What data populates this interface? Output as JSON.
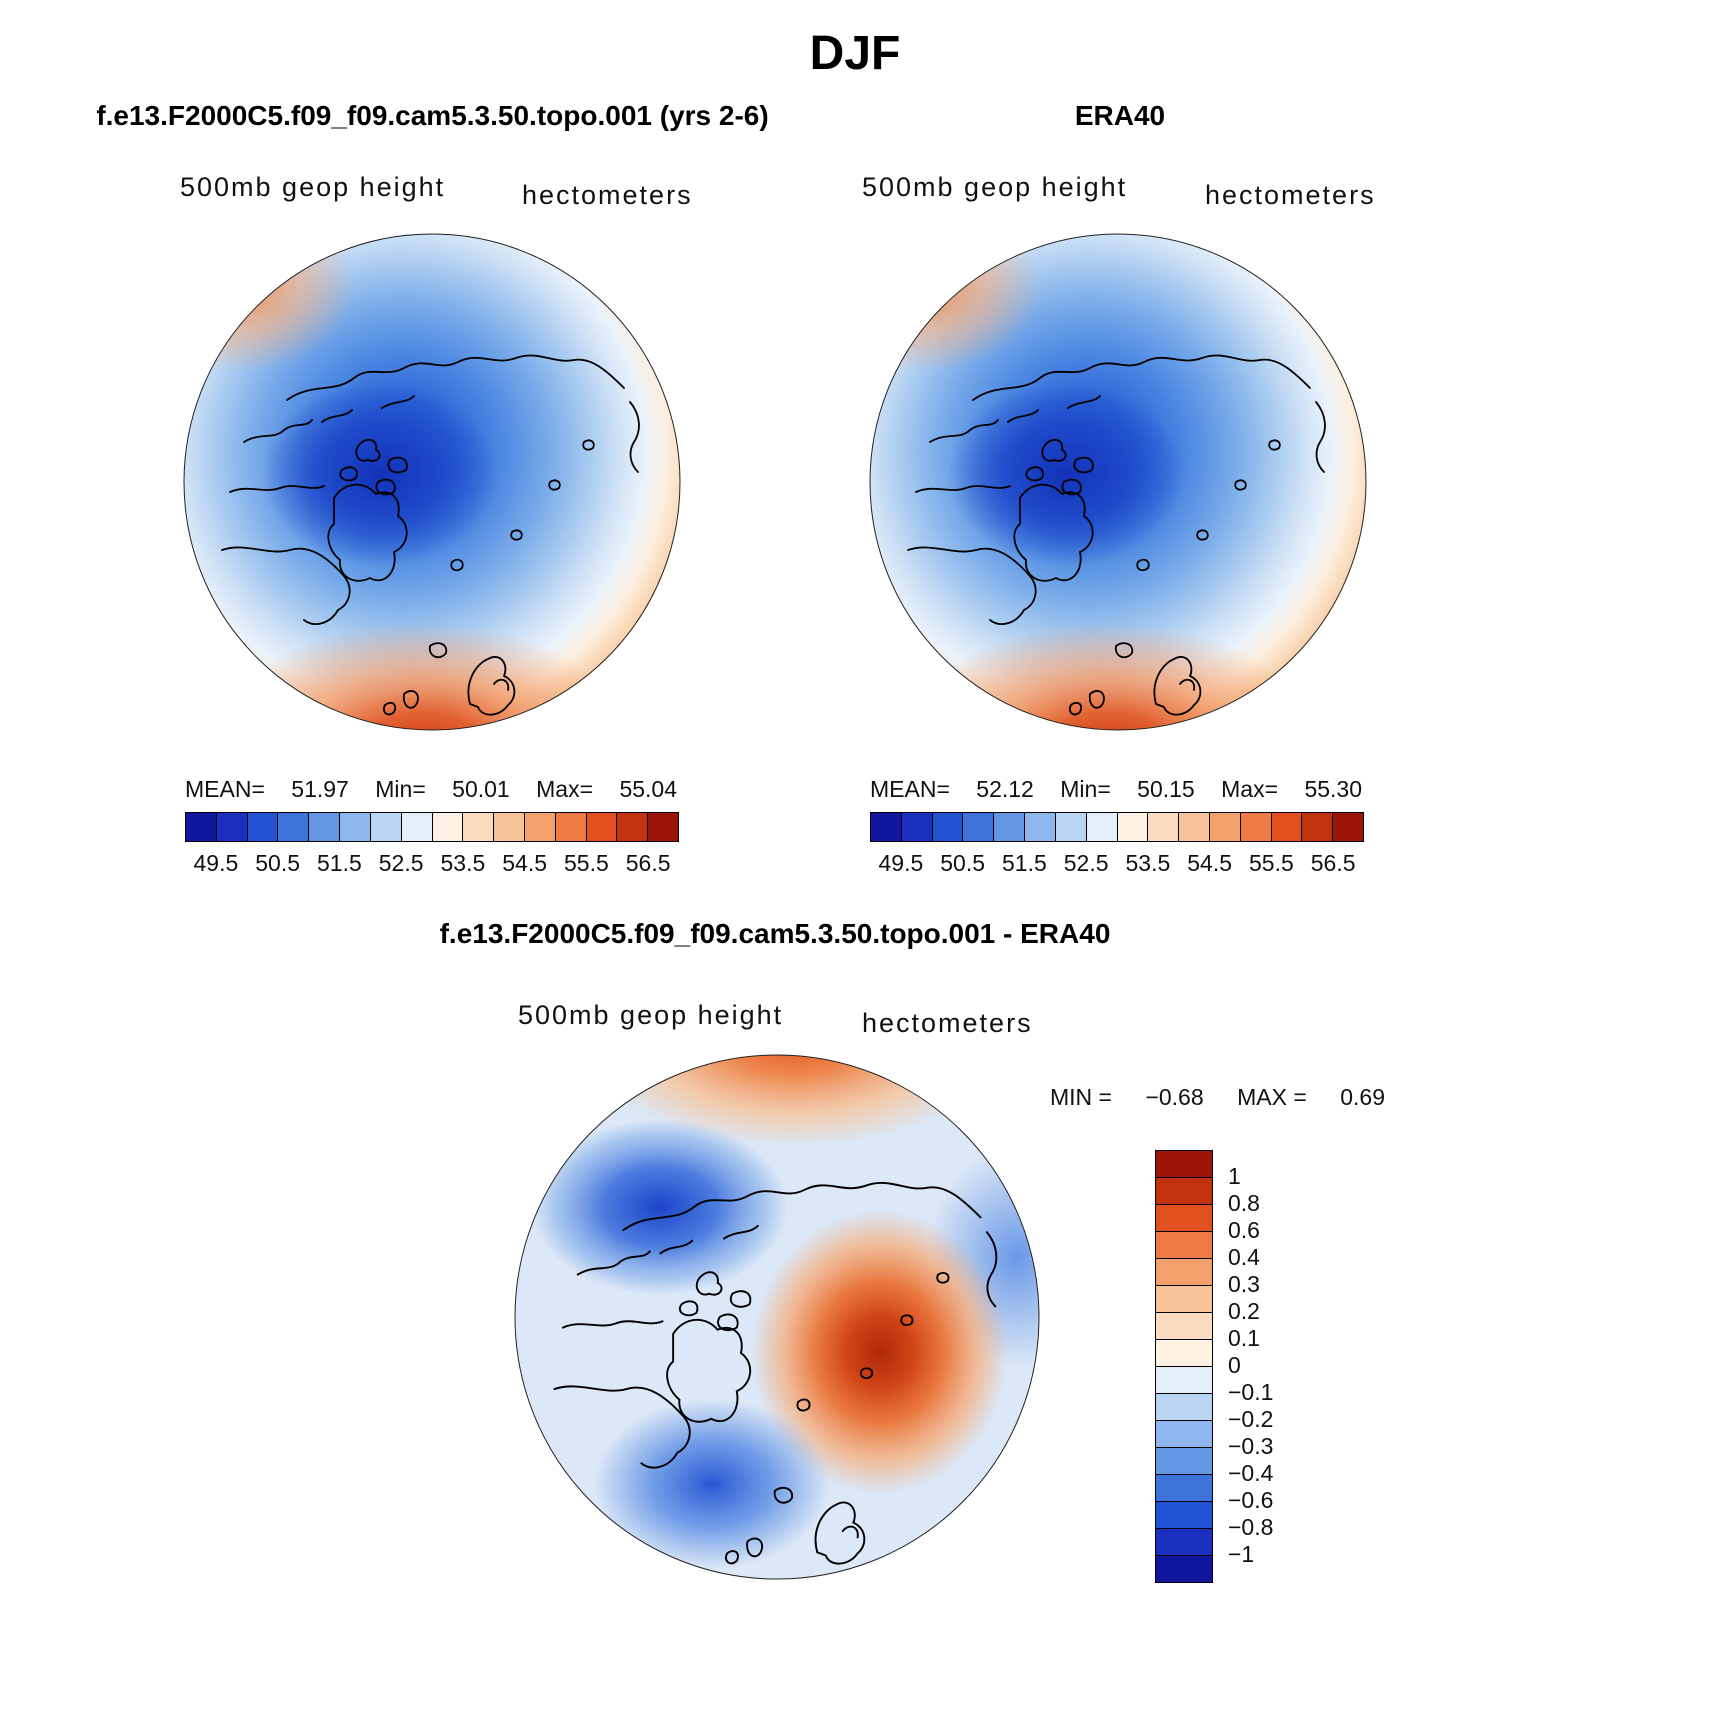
{
  "page": {
    "title": "DJF"
  },
  "model_panel": {
    "title": "f.e13.F2000C5.f09_f09.cam5.3.50.topo.001 (yrs 2-6)",
    "field_label": "500mb geop height",
    "units_label": "hectometers",
    "stats": {
      "mean_label": "MEAN=",
      "mean_value": "51.97",
      "min_label": "Min=",
      "min_value": "50.01",
      "max_label": "Max=",
      "max_value": "55.04"
    }
  },
  "obs_panel": {
    "title": "ERA40",
    "field_label": "500mb geop height",
    "units_label": "hectometers",
    "stats": {
      "mean_label": "MEAN=",
      "mean_value": "52.12",
      "min_label": "Min=",
      "min_value": "50.15",
      "max_label": "Max=",
      "max_value": "55.30"
    }
  },
  "diff_panel": {
    "title": "f.e13.F2000C5.f09_f09.cam5.3.50.topo.001 - ERA40",
    "field_label": "500mb geop height",
    "units_label": "hectometers",
    "stats": {
      "min_label": "MIN =",
      "min_value": "−0.68",
      "max_label": "MAX =",
      "max_value": "0.69"
    }
  },
  "height_colorbar": {
    "colors": [
      "#10169e",
      "#1b2fc0",
      "#2253d2",
      "#3d74dc",
      "#6496e6",
      "#8fb6ee",
      "#bad4f4",
      "#e2eefa",
      "#fdf1e4",
      "#fbdcc0",
      "#f8c29a",
      "#f4a06c",
      "#ef7a44",
      "#e2501f",
      "#c3320f",
      "#9c1508"
    ],
    "tick_labels": [
      "49.5",
      "50.5",
      "51.5",
      "52.5",
      "53.5",
      "54.5",
      "55.5",
      "56.5"
    ]
  },
  "diff_colorbar": {
    "colors": [
      "#9c1508",
      "#c3320f",
      "#e2501f",
      "#ef7a44",
      "#f4a06c",
      "#f8c29a",
      "#fbdcc0",
      "#fdf1e4",
      "#e2eefa",
      "#bad4f4",
      "#8fb6ee",
      "#6496e6",
      "#3d74dc",
      "#2253d2",
      "#1b2fc0",
      "#10169e"
    ],
    "tick_labels": [
      "1",
      "0.8",
      "0.6",
      "0.4",
      "0.3",
      "0.2",
      "0.1",
      "0",
      "−0.1",
      "−0.2",
      "−0.3",
      "−0.4",
      "−0.6",
      "−0.8",
      "−1"
    ]
  },
  "chart_data": [
    {
      "type": "heatmap",
      "subtype": "polar-stereographic-contour-map",
      "title": "f.e13.F2000C5.f09_f09.cam5.3.50.topo.001 (yrs 2-6)",
      "season": "DJF",
      "field": "500mb geop height",
      "units": "hectometers",
      "mean": 51.97,
      "min": 50.01,
      "max": 55.04,
      "contour_levels": [
        49.5,
        50.0,
        50.5,
        51.0,
        51.5,
        52.0,
        52.5,
        53.0,
        53.5,
        54.0,
        54.5,
        55.0,
        55.5,
        56.0,
        56.5
      ],
      "colorbar_ticks": [
        49.5,
        50.5,
        51.5,
        52.5,
        53.5,
        54.5,
        55.5,
        56.5
      ],
      "palette": "blue-to-red",
      "legend_position": "below"
    },
    {
      "type": "heatmap",
      "subtype": "polar-stereographic-contour-map",
      "title": "ERA40",
      "season": "DJF",
      "field": "500mb geop height",
      "units": "hectometers",
      "mean": 52.12,
      "min": 50.15,
      "max": 55.3,
      "contour_levels": [
        49.5,
        50.0,
        50.5,
        51.0,
        51.5,
        52.0,
        52.5,
        53.0,
        53.5,
        54.0,
        54.5,
        55.0,
        55.5,
        56.0,
        56.5
      ],
      "colorbar_ticks": [
        49.5,
        50.5,
        51.5,
        52.5,
        53.5,
        54.5,
        55.5,
        56.5
      ],
      "palette": "blue-to-red",
      "legend_position": "below"
    },
    {
      "type": "heatmap",
      "subtype": "polar-stereographic-contour-map",
      "title": "f.e13.F2000C5.f09_f09.cam5.3.50.topo.001 - ERA40",
      "season": "DJF",
      "field": "500mb geop height",
      "units": "hectometers",
      "min": -0.68,
      "max": 0.69,
      "contour_levels": [
        -1,
        -0.8,
        -0.6,
        -0.4,
        -0.3,
        -0.2,
        -0.1,
        0,
        0.1,
        0.2,
        0.3,
        0.4,
        0.6,
        0.8,
        1
      ],
      "palette": "blue-to-red",
      "legend_position": "right"
    }
  ]
}
